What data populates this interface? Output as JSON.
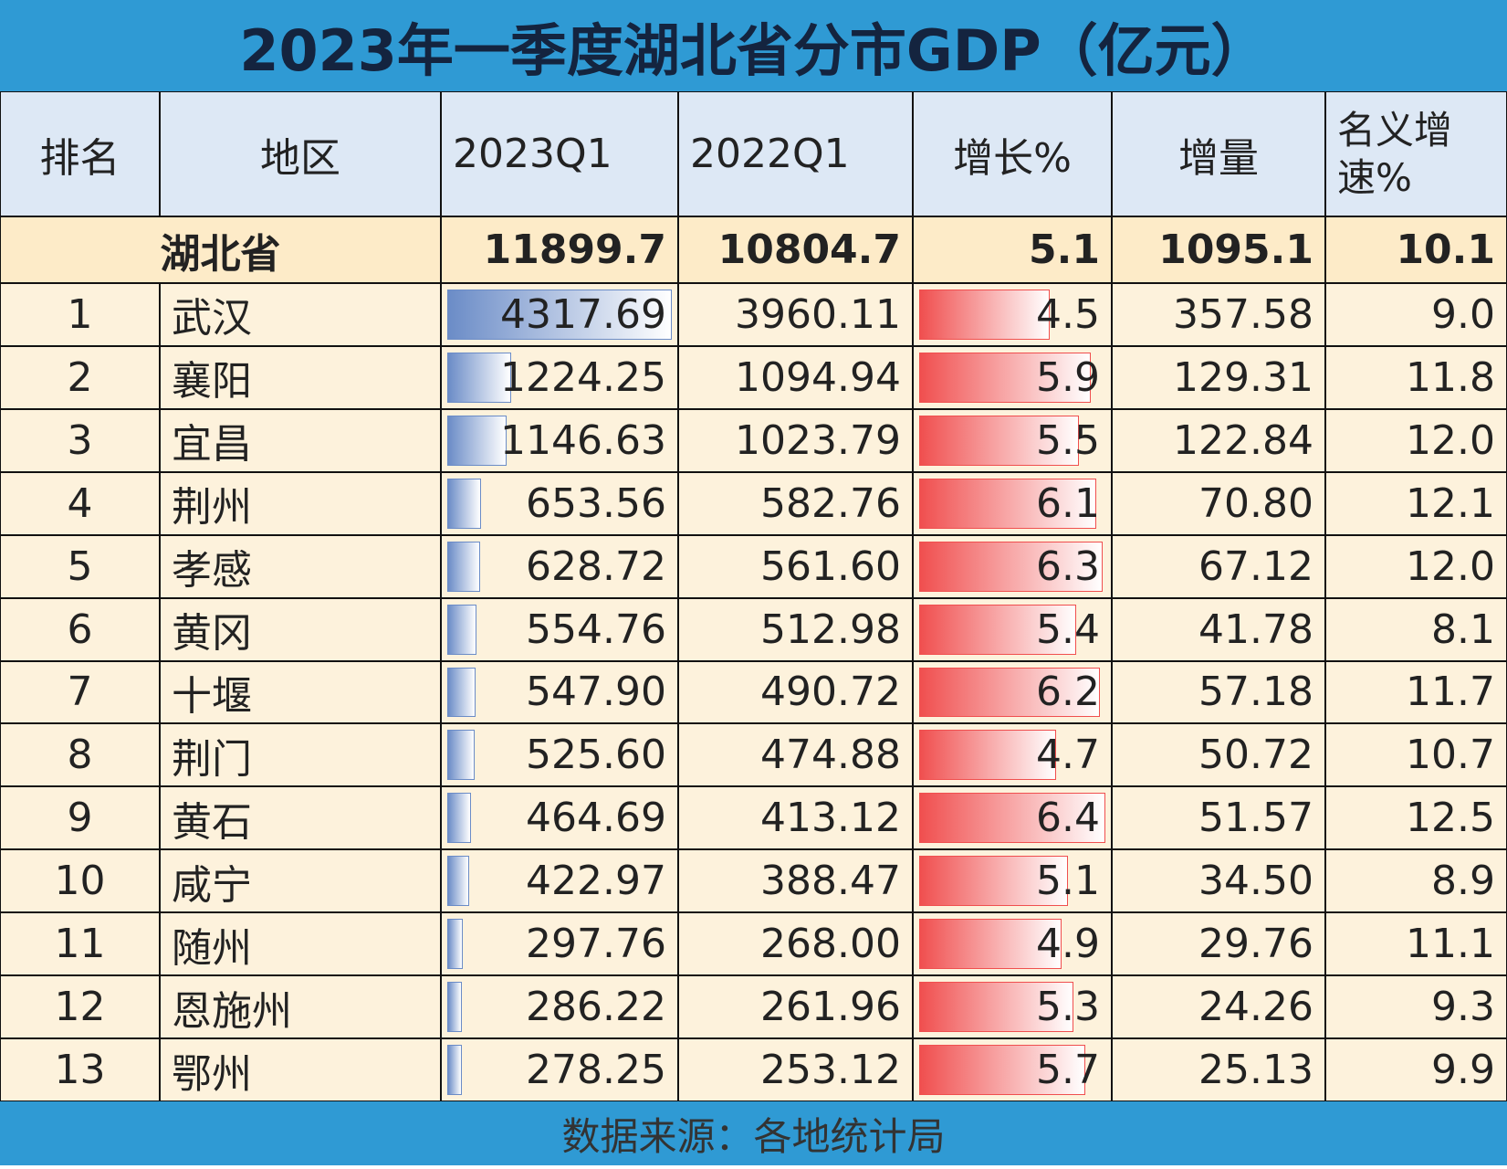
{
  "title": "2023年一季度湖北省分市GDP（亿元）",
  "table": {
    "header": [
      "排名",
      "地区",
      "2023Q1",
      "2022Q1",
      "增长%",
      "增量",
      "名义增速%"
    ],
    "total": [
      "湖北省",
      "11899.7",
      "10804.7",
      "5.1",
      "1095.1",
      "10.1"
    ],
    "rows": [
      [
        "1",
        "武汉",
        "4317.69",
        "3960.11",
        "4.5",
        "357.58",
        "9.0"
      ],
      [
        "2",
        "襄阳",
        "1224.25",
        "1094.94",
        "5.9",
        "129.31",
        "11.8"
      ],
      [
        "3",
        "宜昌",
        "1146.63",
        "1023.79",
        "5.5",
        "122.84",
        "12.0"
      ],
      [
        "4",
        "荆州",
        "653.56",
        "582.76",
        "6.1",
        "70.80",
        "12.1"
      ],
      [
        "5",
        "孝感",
        "628.72",
        "561.60",
        "6.3",
        "67.12",
        "12.0"
      ],
      [
        "6",
        "黄冈",
        "554.76",
        "512.98",
        "5.4",
        "41.78",
        "8.1"
      ],
      [
        "7",
        "十堰",
        "547.90",
        "490.72",
        "6.2",
        "57.18",
        "11.7"
      ],
      [
        "8",
        "荆门",
        "525.60",
        "474.88",
        "4.7",
        "50.72",
        "10.7"
      ],
      [
        "9",
        "黄石",
        "464.69",
        "413.12",
        "6.4",
        "51.57",
        "12.5"
      ],
      [
        "10",
        "咸宁",
        "422.97",
        "388.47",
        "5.1",
        "34.50",
        "8.9"
      ],
      [
        "11",
        "随州",
        "297.76",
        "268.00",
        "4.9",
        "29.76",
        "11.1"
      ],
      [
        "12",
        "恩施州",
        "286.22",
        "261.96",
        "5.3",
        "24.26",
        "9.3"
      ],
      [
        "13",
        "鄂州",
        "278.25",
        "253.12",
        "5.7",
        "25.13",
        "9.9"
      ]
    ]
  },
  "footer": "数据来源：各地统计局"
}
